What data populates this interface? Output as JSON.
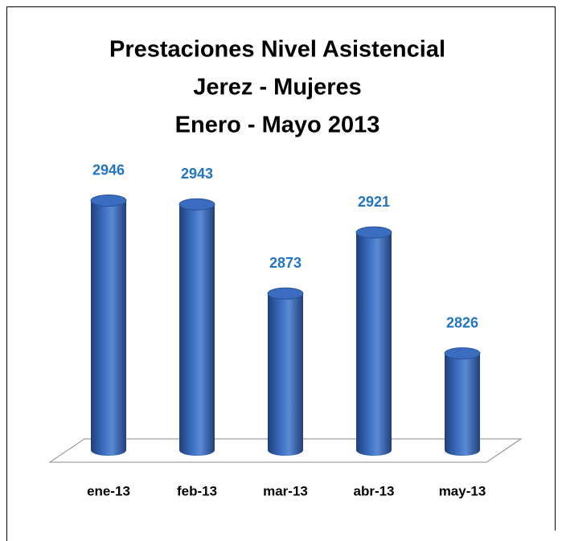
{
  "chart_data": {
    "type": "bar",
    "title": [
      "Prestaciones Nivel Asistencial",
      "Jerez - Mujeres",
      "Enero - Mayo 2013"
    ],
    "categories": [
      "ene-13",
      "feb-13",
      "mar-13",
      "abr-13",
      "may-13"
    ],
    "values": [
      2946,
      2943,
      2873,
      2921,
      2826
    ],
    "color": "#3a6cc0",
    "label_color": "#2375c4",
    "ylim": [
      2750,
      3000
    ]
  }
}
